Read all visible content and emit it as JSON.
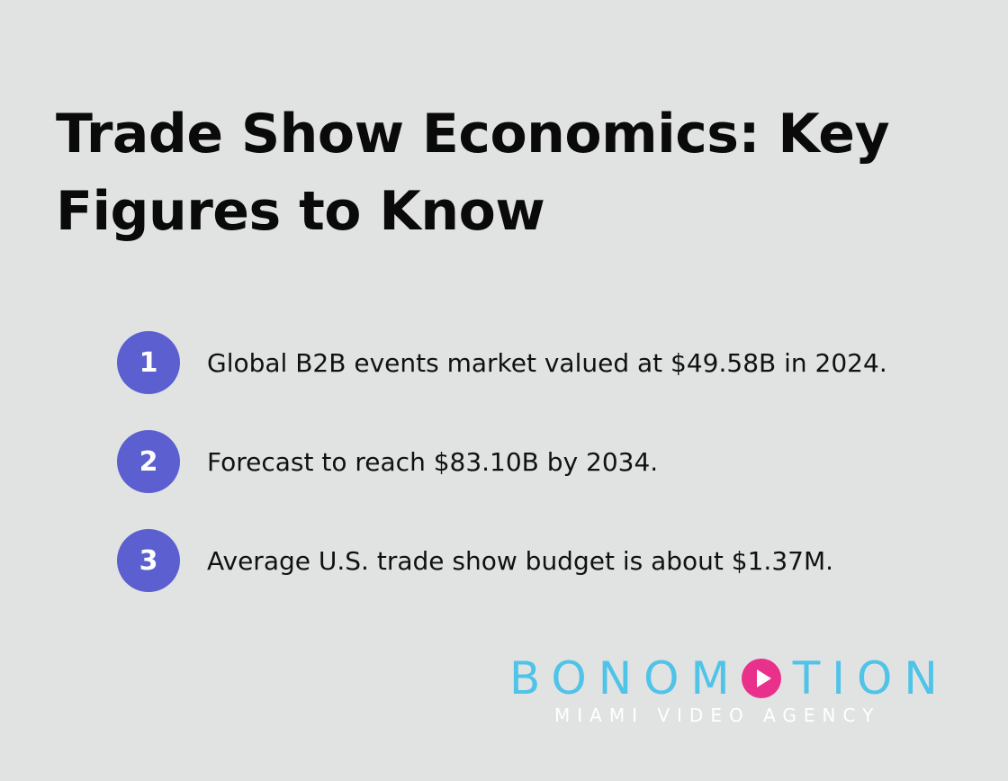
{
  "title": "Trade Show Economics: Key Figures to Know",
  "items": [
    {
      "number": "1",
      "text": "Global B2B events market valued at $49.58B in 2024."
    },
    {
      "number": "2",
      "text": "Forecast to reach $83.10B by 2034."
    },
    {
      "number": "3",
      "text": "Average U.S. trade show budget is about $1.37M."
    }
  ],
  "logo": {
    "word_start": "BONOM",
    "play_icon": "play-circle-icon",
    "word_end": "TION",
    "tagline": "MIAMI VIDEO AGENCY"
  },
  "colors": {
    "background": "#e1e3e2",
    "badge": "#5b5fcf",
    "logo_blue": "#4fc3e8",
    "logo_pink": "#e9308b"
  }
}
